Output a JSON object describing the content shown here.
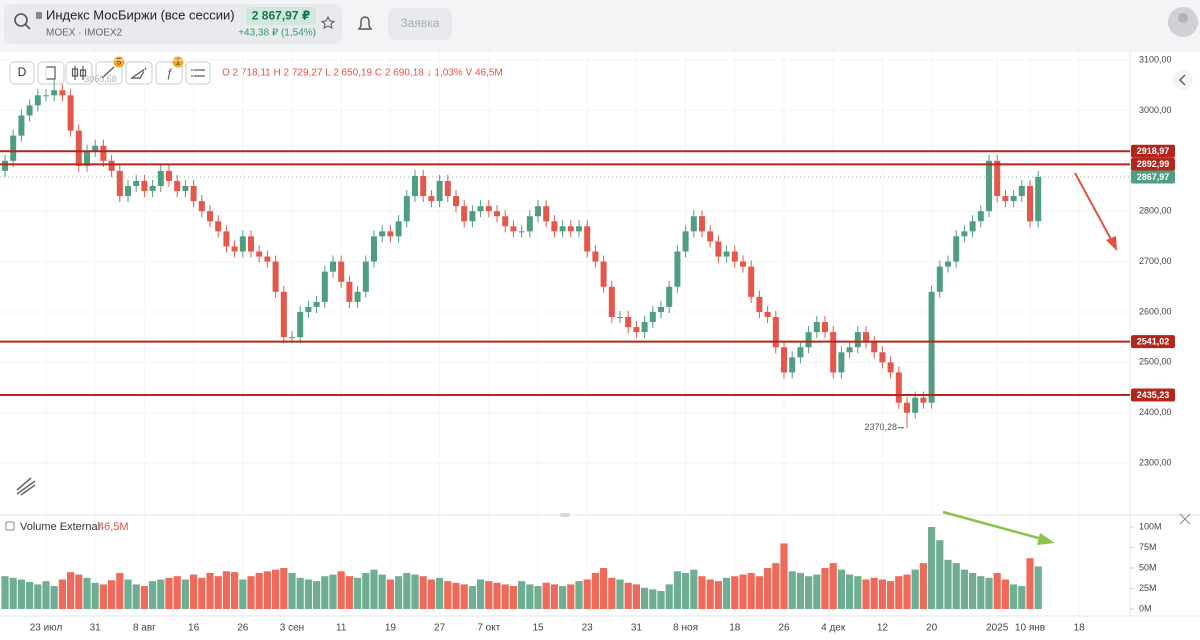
{
  "header": {
    "title": "Индекс МосБиржи (все сессии)",
    "ticker": "MOEX · IMOEX2",
    "price": "2 867,97 ₽",
    "change": "+43,38 ₽ (1,54%)",
    "button": "Заявка"
  },
  "toolbar": {
    "interval": "D",
    "badges": [
      "5",
      "1"
    ],
    "ohlc": "O 2 718,11 H 2 729,27 L 2 650,19 C 2 690,18 ↓ 1,03% V 46,5M"
  },
  "chart_data": [
    {
      "type": "candlestick",
      "up_color": "#4f9e80",
      "down_color": "#e4574c",
      "grid": true,
      "categories": [
        null,
        null,
        null,
        null,
        null,
        "23 июл",
        null,
        null,
        null,
        null,
        null,
        "31",
        null,
        null,
        null,
        null,
        null,
        "8 авг",
        null,
        null,
        null,
        null,
        null,
        "16",
        null,
        null,
        null,
        null,
        null,
        "26",
        null,
        null,
        null,
        null,
        null,
        "3 сен",
        null,
        null,
        null,
        null,
        null,
        "11",
        null,
        null,
        null,
        null,
        null,
        "19",
        null,
        null,
        null,
        null,
        null,
        "27",
        null,
        null,
        null,
        null,
        null,
        "7 окт",
        null,
        null,
        null,
        null,
        null,
        "15",
        null,
        null,
        null,
        null,
        null,
        "23",
        null,
        null,
        null,
        null,
        null,
        "31",
        null,
        null,
        null,
        null,
        null,
        "8 ноя",
        null,
        null,
        null,
        null,
        null,
        "18",
        null,
        null,
        null,
        null,
        null,
        "26",
        null,
        null,
        null,
        null,
        null,
        "4 дек",
        null,
        null,
        null,
        null,
        null,
        "12",
        null,
        null,
        null,
        null,
        null,
        "20",
        null,
        null,
        null,
        null,
        null,
        null,
        null,
        "2025",
        null,
        null,
        null,
        "10 янв",
        null,
        null,
        null,
        null,
        null,
        "18"
      ],
      "open": [
        2880,
        2900,
        2950,
        2990,
        3010,
        3030,
        3030,
        3040,
        3030,
        2960,
        2890,
        2920,
        2930,
        2900,
        2880,
        2830,
        2850,
        2860,
        2840,
        2850,
        2880,
        2860,
        2840,
        2850,
        2820,
        2800,
        2780,
        2760,
        2730,
        2720,
        2750,
        2720,
        2710,
        2700,
        2640,
        2550,
        2550,
        2600,
        2610,
        2620,
        2680,
        2700,
        2660,
        2620,
        2640,
        2700,
        2750,
        2760,
        2750,
        2780,
        2830,
        2870,
        2830,
        2820,
        2860,
        2830,
        2810,
        2780,
        2800,
        2810,
        2800,
        2790,
        2770,
        2760,
        2760,
        2790,
        2810,
        2780,
        2760,
        2770,
        2760,
        2770,
        2720,
        2700,
        2650,
        2590,
        2590,
        2570,
        2560,
        2580,
        2600,
        2610,
        2650,
        2720,
        2760,
        2790,
        2760,
        2740,
        2710,
        2720,
        2700,
        2690,
        2630,
        2600,
        2590,
        2530,
        2480,
        2510,
        2530,
        2560,
        2580,
        2560,
        2480,
        2520,
        2530,
        2560,
        2540,
        2520,
        2500,
        2480,
        2420,
        2400,
        2430,
        2420,
        2640,
        2690,
        2700,
        2750,
        2760,
        2780,
        2800,
        2900,
        2830,
        2820,
        2830,
        2850,
        2780,
        null,
        null,
        null,
        null,
        null
      ],
      "high": [
        2912,
        2962,
        3002,
        3022,
        3042,
        3042,
        3060.68,
        3052,
        3042,
        2972,
        2932,
        2942,
        2942,
        2912,
        2892,
        2862,
        2872,
        2872,
        2862,
        2892,
        2892,
        2872,
        2862,
        2862,
        2832,
        2812,
        2792,
        2772,
        2742,
        2762,
        2762,
        2732,
        2722,
        2712,
        2652,
        2562,
        2612,
        2622,
        2632,
        2692,
        2712,
        2712,
        2672,
        2652,
        2712,
        2762,
        2772,
        2772,
        2792,
        2842,
        2882,
        2882,
        2842,
        2872,
        2872,
        2842,
        2822,
        2812,
        2822,
        2822,
        2812,
        2802,
        2782,
        2772,
        2802,
        2822,
        2822,
        2792,
        2782,
        2782,
        2782,
        2782,
        2732,
        2712,
        2662,
        2602,
        2602,
        2582,
        2592,
        2612,
        2622,
        2662,
        2732,
        2772,
        2802,
        2802,
        2772,
        2752,
        2732,
        2732,
        2712,
        2702,
        2642,
        2612,
        2602,
        2542,
        2522,
        2542,
        2572,
        2592,
        2592,
        2572,
        2532,
        2542,
        2572,
        2572,
        2552,
        2532,
        2512,
        2492,
        2432,
        2442,
        2442,
        2652,
        2702,
        2712,
        2762,
        2772,
        2792,
        2812,
        2912,
        2912,
        2842,
        2842,
        2862,
        2862,
        2880,
        null,
        null,
        null,
        null,
        null
      ],
      "low": [
        2868,
        2888,
        2938,
        2978,
        2998,
        3018,
        3018,
        3018,
        2948,
        2878,
        2878,
        2908,
        2888,
        2868,
        2818,
        2818,
        2838,
        2828,
        2828,
        2838,
        2848,
        2828,
        2828,
        2808,
        2788,
        2768,
        2748,
        2718,
        2708,
        2708,
        2708,
        2698,
        2688,
        2628,
        2538,
        2538,
        2538,
        2588,
        2598,
        2608,
        2668,
        2648,
        2608,
        2608,
        2628,
        2688,
        2738,
        2738,
        2738,
        2768,
        2818,
        2818,
        2808,
        2808,
        2818,
        2798,
        2768,
        2768,
        2788,
        2788,
        2778,
        2758,
        2748,
        2748,
        2748,
        2778,
        2768,
        2748,
        2748,
        2748,
        2748,
        2708,
        2688,
        2638,
        2578,
        2578,
        2558,
        2548,
        2548,
        2568,
        2588,
        2598,
        2638,
        2708,
        2748,
        2748,
        2728,
        2698,
        2698,
        2688,
        2678,
        2618,
        2588,
        2578,
        2518,
        2468,
        2468,
        2498,
        2518,
        2548,
        2548,
        2468,
        2468,
        2508,
        2518,
        2528,
        2508,
        2488,
        2468,
        2408,
        2370.28,
        2388,
        2408,
        2408,
        2628,
        2678,
        2688,
        2738,
        2748,
        2768,
        2788,
        2818,
        2808,
        2808,
        2818,
        2768,
        2768,
        null,
        null,
        null,
        null,
        null
      ],
      "close": [
        2900,
        2950,
        2990,
        3010,
        3030,
        3030,
        3040,
        3030,
        2960,
        2890,
        2920,
        2930,
        2900,
        2880,
        2830,
        2850,
        2860,
        2840,
        2850,
        2880,
        2860,
        2840,
        2850,
        2820,
        2800,
        2780,
        2760,
        2730,
        2720,
        2750,
        2720,
        2710,
        2700,
        2640,
        2550,
        2550,
        2600,
        2610,
        2620,
        2680,
        2700,
        2660,
        2620,
        2640,
        2700,
        2750,
        2760,
        2750,
        2780,
        2830,
        2870,
        2830,
        2820,
        2860,
        2830,
        2810,
        2780,
        2800,
        2810,
        2800,
        2790,
        2770,
        2760,
        2760,
        2790,
        2810,
        2780,
        2760,
        2770,
        2760,
        2770,
        2720,
        2700,
        2650,
        2590,
        2590,
        2570,
        2560,
        2580,
        2600,
        2610,
        2650,
        2720,
        2760,
        2790,
        2760,
        2740,
        2710,
        2720,
        2700,
        2690,
        2630,
        2600,
        2590,
        2530,
        2480,
        2510,
        2530,
        2560,
        2580,
        2560,
        2480,
        2520,
        2530,
        2560,
        2540,
        2520,
        2500,
        2480,
        2420,
        2400,
        2430,
        2420,
        2640,
        2690,
        2700,
        2750,
        2760,
        2780,
        2800,
        2900,
        2830,
        2820,
        2830,
        2850,
        2780,
        2867.97,
        null,
        null,
        null,
        null,
        null
      ],
      "ylim": [
        2203,
        3110
      ],
      "yticks": [
        {
          "value": 3100,
          "label": "3100,00"
        },
        {
          "value": 3000,
          "label": "3000,00"
        },
        {
          "value": 2900,
          "label": "2900,00"
        },
        {
          "value": 2800,
          "label": "2800,00"
        },
        {
          "value": 2700,
          "label": "2700,00"
        },
        {
          "value": 2600,
          "label": "2600,00"
        },
        {
          "value": 2500,
          "label": "2500,00"
        },
        {
          "value": 2400,
          "label": "2400,00"
        },
        {
          "value": 2300,
          "label": "2300,00"
        }
      ],
      "levels": [
        {
          "value": 2918.97,
          "label": "2918,97"
        },
        {
          "value": 2892.99,
          "label": "2892,99"
        },
        {
          "value": 2541.02,
          "label": "2541,02"
        },
        {
          "value": 2435.23,
          "label": "2435,23"
        }
      ],
      "level_color": "#b3261e",
      "last_price": {
        "value": 2867.97,
        "label": "2867,97"
      },
      "high_marker": {
        "value": 3060.68,
        "label": "3060,68"
      },
      "low_marker": {
        "value": 2370.28,
        "label": "2370,28"
      }
    },
    {
      "type": "bar",
      "name": "Volume External",
      "legend_value": "46,5M",
      "up_color": "#6fae93",
      "down_color": "#ee6a5b",
      "values": [
        40,
        38,
        36,
        33,
        30,
        34,
        28,
        36,
        45,
        42,
        38,
        32,
        30,
        35,
        44,
        36,
        30,
        28,
        34,
        36,
        38,
        40,
        36,
        42,
        38,
        44,
        40,
        46,
        45,
        36,
        40,
        44,
        46,
        48,
        50,
        44,
        38,
        36,
        34,
        40,
        42,
        46,
        40,
        38,
        44,
        48,
        42,
        36,
        40,
        44,
        42,
        40,
        36,
        38,
        34,
        32,
        30,
        28,
        36,
        34,
        32,
        30,
        28,
        34,
        30,
        28,
        32,
        30,
        28,
        30,
        34,
        36,
        44,
        50,
        38,
        36,
        32,
        30,
        26,
        24,
        22,
        30,
        46,
        44,
        48,
        40,
        36,
        34,
        38,
        40,
        42,
        44,
        40,
        50,
        56,
        80,
        46,
        44,
        40,
        42,
        50,
        56,
        48,
        42,
        40,
        36,
        38,
        36,
        34,
        40,
        42,
        48,
        56,
        100,
        84,
        60,
        56,
        48,
        44,
        40,
        38,
        44,
        36,
        30,
        28,
        62,
        52,
        null,
        null,
        null,
        null,
        null
      ],
      "ylim": [
        0,
        111
      ],
      "yticks": [
        {
          "value": 0,
          "label": "0M"
        },
        {
          "value": 25,
          "label": "25M"
        },
        {
          "value": 50,
          "label": "50M"
        },
        {
          "value": 75,
          "label": "75M"
        },
        {
          "value": 100,
          "label": "100M"
        }
      ]
    }
  ]
}
